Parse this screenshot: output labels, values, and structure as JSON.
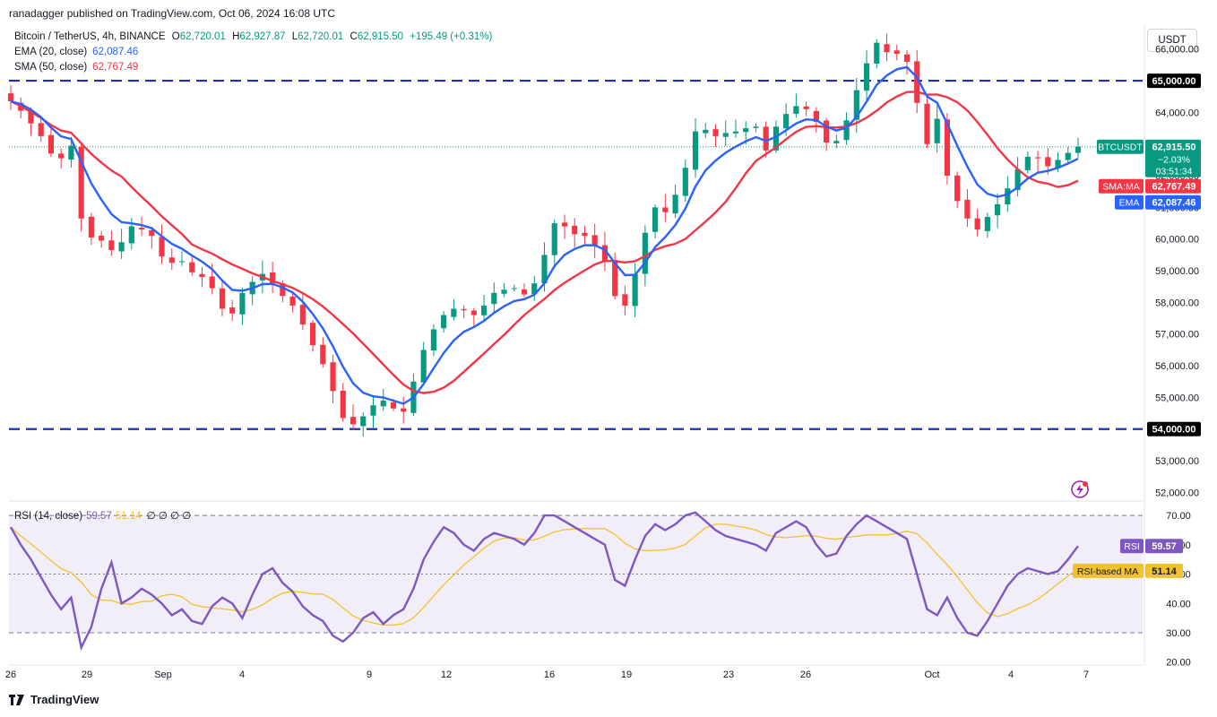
{
  "publisher": "ranadagger published on TradingView.com, Oct 06, 2024 16:08 UTC",
  "legend": {
    "symbol": "Bitcoin / TetherUS, 4h, BINANCE",
    "ohlc": [
      {
        "k": "O",
        "v": "62,720.01"
      },
      {
        "k": "H",
        "v": "62,927.87"
      },
      {
        "k": "L",
        "v": "62,720.01"
      },
      {
        "k": "C",
        "v": "62,915.50"
      }
    ],
    "change": "+195.49 (+0.31%)",
    "ema_label": "EMA (20, close)",
    "ema_value": "62,087.46",
    "sma_label": "SMA (50, close)",
    "sma_value": "62,767.49"
  },
  "rsi_legend": {
    "label": "RSI (14, close)",
    "rsi_value": "59.57",
    "ma_value": "51.14",
    "zeros": "∅ ∅ ∅ ∅"
  },
  "currency_button": "USDT",
  "footer_brand": "TradingView",
  "colors": {
    "up": "#089981",
    "down": "#f23645",
    "ema": "#2962ff",
    "sma": "#f23645",
    "rsi": "#7e57c2",
    "rsi_ma": "#f2c12e",
    "level": "#1e2db8"
  },
  "chart_data": [
    {
      "type": "candlestick",
      "title": "Bitcoin / TetherUS, 4h, BINANCE",
      "ylim": [
        51700,
        66700
      ],
      "y_ticks": [
        "66,000.00",
        "65,000.00",
        "64,000.00",
        "63,000.00",
        "62,000.00",
        "61,000.00",
        "60,000.00",
        "59,000.00",
        "58,000.00",
        "57,000.00",
        "56,000.00",
        "55,000.00",
        "54,000.00",
        "53,000.00",
        "52,000.00"
      ],
      "x_ticks": [
        "26",
        "29",
        "Sep",
        "4",
        "9",
        "12",
        "16",
        "19",
        "23",
        "26",
        "Oct",
        "4",
        "7"
      ],
      "horizontal_levels": [
        {
          "value": 65000,
          "label": "65,000.00"
        },
        {
          "value": 54000,
          "label": "54,000.00"
        }
      ],
      "close_series": [
        64350,
        64050,
        63650,
        63250,
        62700,
        62550,
        62950,
        60650,
        60050,
        59950,
        59650,
        59900,
        60400,
        60300,
        60100,
        59450,
        59250,
        59300,
        58950,
        58800,
        58450,
        57800,
        57650,
        58300,
        58650,
        58900,
        58600,
        58200,
        57900,
        57300,
        56650,
        56050,
        55200,
        54350,
        54150,
        54400,
        54750,
        54900,
        54650,
        54550,
        55500,
        56500,
        57150,
        57600,
        57800,
        57750,
        57600,
        57900,
        58300,
        58400,
        58450,
        58250,
        58600,
        59500,
        60500,
        60400,
        60150,
        60100,
        59800,
        59300,
        58200,
        57900,
        58900,
        60200,
        61000,
        60850,
        61400,
        62250,
        63400,
        63450,
        63250,
        63350,
        63400,
        63500,
        63550,
        62800,
        63550,
        63950,
        64200,
        64100,
        63700,
        63050,
        63100,
        63750,
        64700,
        65550,
        66200,
        65900,
        65850,
        65600,
        64300,
        63000,
        63800,
        62000,
        61200,
        60650,
        60300,
        60700,
        61100,
        61600,
        62200,
        62600,
        62550,
        62300,
        62500,
        62720,
        62915.5
      ],
      "ema20": {
        "name": "EMA (20, close)",
        "last": 62087.46
      },
      "sma50": {
        "name": "SMA (50, close)",
        "last": 62767.49
      },
      "price_labels": [
        {
          "tag": "BTCUSDT",
          "value": "62,915.50",
          "change": "−2.03%",
          "countdown": "03:51:34"
        },
        {
          "tag": "SMA:MA",
          "value": "62,767.49"
        },
        {
          "tag": "EMA",
          "value": "62,087.46"
        },
        {
          "tag": "",
          "value": "65,000.00"
        },
        {
          "tag": "",
          "value": "54,000.00"
        }
      ]
    },
    {
      "type": "line",
      "title": "RSI (14, close)",
      "ylim": [
        19,
        74
      ],
      "y_ticks": [
        "70.00",
        "60.00",
        "50.00",
        "40.00",
        "30.00",
        "20.00"
      ],
      "band": [
        30,
        70
      ],
      "midline": 50,
      "rsi_series": [
        66,
        60,
        55,
        49,
        43,
        38,
        42,
        25,
        32,
        45,
        54,
        40,
        42,
        45,
        43,
        40,
        36,
        38,
        34,
        33,
        39,
        42,
        40,
        35,
        43,
        50,
        52,
        47,
        44,
        39,
        36,
        34,
        29,
        27,
        30,
        35,
        37,
        33,
        36,
        38,
        45,
        55,
        61,
        66,
        64,
        60,
        58,
        62,
        64,
        63,
        62,
        60,
        64,
        70,
        70,
        68,
        66,
        64,
        62,
        60,
        48,
        46,
        55,
        63,
        67,
        65,
        67,
        70,
        71,
        68,
        65,
        63,
        62,
        61,
        60,
        58,
        64,
        66,
        68,
        66,
        60,
        56,
        57,
        63,
        67,
        70,
        68,
        66,
        64,
        62,
        50,
        38,
        36,
        42,
        35,
        30,
        29,
        34,
        40,
        46,
        50,
        52,
        51,
        50,
        51,
        55,
        59.57
      ],
      "rsi_ma_last": 51.14,
      "labels": [
        {
          "tag": "RSI",
          "value": "59.57"
        },
        {
          "tag": "RSI-based MA",
          "value": "51.14"
        }
      ]
    }
  ]
}
